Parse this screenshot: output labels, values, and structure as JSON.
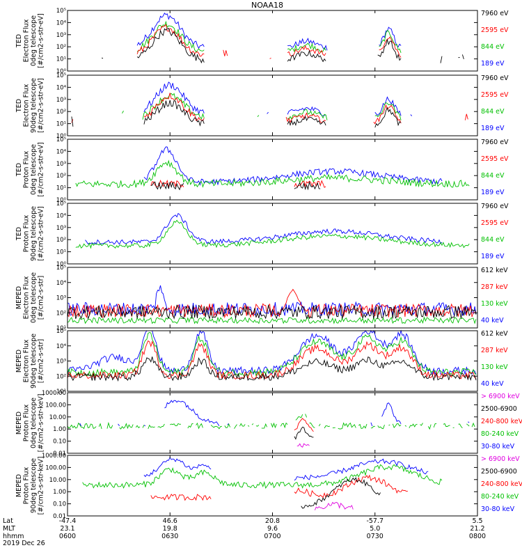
{
  "chart_data": {
    "type": "scatter",
    "title": "NOAA18",
    "x_axis": {
      "rows": [
        {
          "label": "Lat",
          "values": [
            "-47.4",
            "46.6",
            "20.8",
            "-57.7",
            "5.5"
          ]
        },
        {
          "label": "MLT",
          "values": [
            "23.1",
            "19.8",
            "9.6",
            "5.0",
            "21.2"
          ]
        },
        {
          "label": "hhmm",
          "values": [
            "0600",
            "0630",
            "0700",
            "0730",
            "0800"
          ]
        }
      ],
      "date": "2019 Dec 26",
      "time_range_minutes": [
        0,
        120
      ]
    },
    "panels": [
      {
        "ylabel": [
          "TED",
          "Electron Flux",
          "0deg telescope",
          "[#/cm2-s-str-eV]"
        ],
        "y_scale": "log",
        "ylim": [
          1,
          100000
        ],
        "ticks": [
          "10⁰",
          "10¹",
          "10²",
          "10³",
          "10⁴",
          "10⁵"
        ],
        "legend": [
          {
            "label": "7960 eV",
            "color": "#000000"
          },
          {
            "label": "2595 eV",
            "color": "#ff0000"
          },
          {
            "label": "844 eV",
            "color": "#00c000"
          },
          {
            "label": "189 eV",
            "color": "#0000ff"
          }
        ]
      },
      {
        "ylabel": [
          "TED",
          "Electron Flux",
          "90deg telescope",
          "[#/cm2-s-str-eV]"
        ],
        "y_scale": "log",
        "ylim": [
          1,
          100000
        ],
        "ticks": [
          "10⁰",
          "10¹",
          "10²",
          "10³",
          "10⁴",
          "10⁵"
        ],
        "legend": [
          {
            "label": "7960 eV",
            "color": "#000000"
          },
          {
            "label": "2595 eV",
            "color": "#ff0000"
          },
          {
            "label": "844 eV",
            "color": "#00c000"
          },
          {
            "label": "189 eV",
            "color": "#0000ff"
          }
        ]
      },
      {
        "ylabel": [
          "TED",
          "Proton Flux",
          "0deg telescope",
          "[#/cm2-s-str-eV]"
        ],
        "y_scale": "log",
        "ylim": [
          1,
          100000
        ],
        "ticks": [
          "10⁰",
          "10¹",
          "10²",
          "10³",
          "10⁴",
          "10⁵"
        ],
        "legend": [
          {
            "label": "7960 eV",
            "color": "#000000"
          },
          {
            "label": "2595 eV",
            "color": "#ff0000"
          },
          {
            "label": "844 eV",
            "color": "#00c000"
          },
          {
            "label": "189 eV",
            "color": "#0000ff"
          }
        ]
      },
      {
        "ylabel": [
          "TED",
          "Proton Flux",
          "90deg telescope",
          "[#/cm2-s-str-eV]"
        ],
        "y_scale": "log",
        "ylim": [
          1,
          100000
        ],
        "ticks": [
          "10⁰",
          "10¹",
          "10²",
          "10³",
          "10⁴",
          "10⁵"
        ],
        "legend": [
          {
            "label": "7960 eV",
            "color": "#000000"
          },
          {
            "label": "2595 eV",
            "color": "#ff0000"
          },
          {
            "label": "844 eV",
            "color": "#00c000"
          },
          {
            "label": "189 eV",
            "color": "#0000ff"
          }
        ]
      },
      {
        "ylabel": [
          "MEPED",
          "Electron Flux",
          "0deg telescope",
          "[#/cm2-s-str]"
        ],
        "y_scale": "log",
        "ylim": [
          10,
          100000
        ],
        "ticks": [
          "10¹",
          "10²",
          "10³",
          "10⁴",
          "10⁵"
        ],
        "legend": [
          {
            "label": "612 keV",
            "color": "#000000"
          },
          {
            "label": "287 keV",
            "color": "#ff0000"
          },
          {
            "label": "130 keV",
            "color": "#00c000"
          },
          {
            "label": "40 keV",
            "color": "#0000ff"
          }
        ]
      },
      {
        "ylabel": [
          "MEPED",
          "Electron Flux",
          "90deg telescope",
          "[#/cm2-s-str]"
        ],
        "y_scale": "log",
        "ylim": [
          10,
          100000
        ],
        "ticks": [
          "10¹",
          "10²",
          "10³",
          "10⁴",
          "10⁵"
        ],
        "legend": [
          {
            "label": "612 keV",
            "color": "#000000"
          },
          {
            "label": "287 keV",
            "color": "#ff0000"
          },
          {
            "label": "130 keV",
            "color": "#00c000"
          },
          {
            "label": "40 keV",
            "color": "#0000ff"
          }
        ]
      },
      {
        "ylabel": [
          "MEPED",
          "Proton Flux",
          "0deg telescope",
          "[#/cm2-s-str-keV]"
        ],
        "y_scale": "log",
        "ylim": [
          0.01,
          1000
        ],
        "ticks": [
          "0.01",
          "0.10",
          "1.00",
          "10.00",
          "100.00",
          "1000.00"
        ],
        "legend": [
          {
            "label": "> 6900 keV",
            "color": "#e000e0"
          },
          {
            "label": "2500-6900",
            "color": "#000000"
          },
          {
            "label": "240-800 keV",
            "color": "#ff0000"
          },
          {
            "label": "80-240 keV",
            "color": "#00c000"
          },
          {
            "label": "30-80 keV",
            "color": "#0000ff"
          }
        ]
      },
      {
        "ylabel": [
          "MEPED",
          "Proton Flux",
          "90deg telescope",
          "[#/cm2-s-str-keV]"
        ],
        "y_scale": "log",
        "ylim": [
          0.01,
          1000
        ],
        "ticks": [
          "0.01",
          "0.10",
          "1.00",
          "10.00",
          "100.00",
          "1000.00"
        ],
        "legend": [
          {
            "label": "> 6900 keV",
            "color": "#e000e0"
          },
          {
            "label": "2500-6900",
            "color": "#000000"
          },
          {
            "label": "240-800 keV",
            "color": "#ff0000"
          },
          {
            "label": "80-240 keV",
            "color": "#00c000"
          },
          {
            "label": "30-80 keV",
            "color": "#0000ff"
          }
        ]
      }
    ]
  }
}
